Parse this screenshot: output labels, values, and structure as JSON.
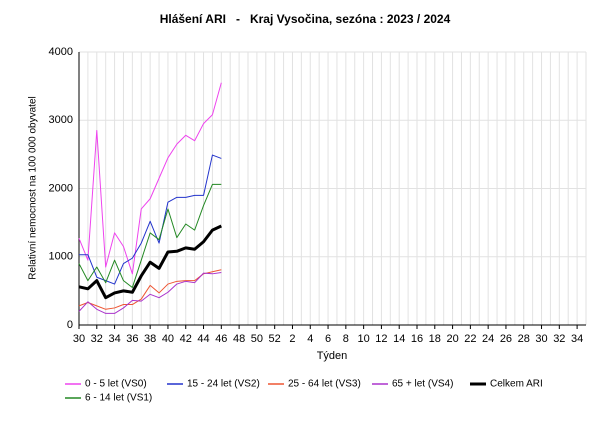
{
  "chart_data": {
    "type": "line",
    "title": "Hlášení ARI   -   Kraj Vysočina, sezóna : 2023 / 2024",
    "y_label": "Relativní nemocnost na 100 000 obyvatel",
    "x_label": "Týden",
    "categories": [
      "30",
      null,
      "32",
      null,
      "34",
      null,
      "36",
      null,
      "38",
      null,
      "40",
      null,
      "42",
      null,
      "44",
      null,
      "46",
      null,
      "48",
      null,
      "50",
      null,
      "52",
      null,
      "2",
      null,
      "4",
      null,
      "6",
      null,
      "8",
      null,
      "10",
      null,
      "12",
      null,
      "14",
      null,
      "16",
      null,
      "18",
      null,
      "20",
      null,
      "22",
      null,
      "24",
      null,
      "26",
      null,
      "28",
      null,
      "30",
      null,
      "32",
      null,
      "34",
      null
    ],
    "ylim": [
      0,
      4000
    ],
    "yticks": [
      0,
      1000,
      2000,
      3000,
      4000
    ],
    "grid": true,
    "series": [
      {
        "name": "0 - 5 let (VS0)",
        "color": "#ee44ee",
        "values": [
          1270,
          950,
          2850,
          850,
          1350,
          1150,
          750,
          1700,
          1850,
          2150,
          2450,
          2650,
          2780,
          2700,
          2950,
          3080,
          3550,
          null,
          null,
          null,
          null,
          null,
          null,
          null,
          null,
          null,
          null,
          null,
          null,
          null,
          null,
          null,
          null,
          null,
          null,
          null,
          null,
          null,
          null,
          null,
          null,
          null,
          null,
          null,
          null,
          null,
          null,
          null,
          null,
          null,
          null,
          null,
          null,
          null,
          null,
          null,
          null,
          null
        ]
      },
      {
        "name": "15 - 24 let (VS2)",
        "color": "#2233cc",
        "values": [
          1030,
          1030,
          700,
          650,
          600,
          900,
          980,
          1200,
          1520,
          1200,
          1800,
          1870,
          1870,
          1900,
          1900,
          2490,
          2440,
          null,
          null,
          null,
          null,
          null,
          null,
          null,
          null,
          null,
          null,
          null,
          null,
          null,
          null,
          null,
          null,
          null,
          null,
          null,
          null,
          null,
          null,
          null,
          null,
          null,
          null,
          null,
          null,
          null,
          null,
          null,
          null,
          null,
          null,
          null,
          null,
          null,
          null,
          null,
          null,
          null
        ]
      },
      {
        "name": "25 - 64 let (VS3)",
        "color": "#ee5533",
        "values": [
          280,
          330,
          280,
          230,
          250,
          300,
          300,
          380,
          580,
          470,
          600,
          640,
          650,
          650,
          750,
          780,
          810,
          null,
          null,
          null,
          null,
          null,
          null,
          null,
          null,
          null,
          null,
          null,
          null,
          null,
          null,
          null,
          null,
          null,
          null,
          null,
          null,
          null,
          null,
          null,
          null,
          null,
          null,
          null,
          null,
          null,
          null,
          null,
          null,
          null,
          null,
          null,
          null,
          null,
          null,
          null,
          null,
          null
        ]
      },
      {
        "name": "65 + let (VS4)",
        "color": "#aa33cc",
        "values": [
          200,
          340,
          230,
          170,
          170,
          250,
          360,
          350,
          450,
          400,
          480,
          600,
          640,
          620,
          760,
          750,
          770,
          null,
          null,
          null,
          null,
          null,
          null,
          null,
          null,
          null,
          null,
          null,
          null,
          null,
          null,
          null,
          null,
          null,
          null,
          null,
          null,
          null,
          null,
          null,
          null,
          null,
          null,
          null,
          null,
          null,
          null,
          null,
          null,
          null,
          null,
          null,
          null,
          null,
          null,
          null,
          null,
          null
        ]
      },
      {
        "name": "Celkem ARI",
        "color": "#000000",
        "width": 3,
        "values": [
          560,
          530,
          650,
          400,
          470,
          500,
          480,
          720,
          920,
          830,
          1070,
          1080,
          1130,
          1110,
          1220,
          1390,
          1450,
          null,
          null,
          null,
          null,
          null,
          null,
          null,
          null,
          null,
          null,
          null,
          null,
          null,
          null,
          null,
          null,
          null,
          null,
          null,
          null,
          null,
          null,
          null,
          null,
          null,
          null,
          null,
          null,
          null,
          null,
          null,
          null,
          null,
          null,
          null,
          null,
          null,
          null,
          null,
          null,
          null
        ]
      },
      {
        "name": "6 - 14 let (VS1)",
        "color": "#228822",
        "values": [
          900,
          650,
          850,
          620,
          950,
          650,
          550,
          950,
          1350,
          1250,
          1700,
          1280,
          1480,
          1390,
          1750,
          2060,
          2060,
          null,
          null,
          null,
          null,
          null,
          null,
          null,
          null,
          null,
          null,
          null,
          null,
          null,
          null,
          null,
          null,
          null,
          null,
          null,
          null,
          null,
          null,
          null,
          null,
          null,
          null,
          null,
          null,
          null,
          null,
          null,
          null,
          null,
          null,
          null,
          null,
          null,
          null,
          null,
          null,
          null
        ]
      }
    ]
  }
}
